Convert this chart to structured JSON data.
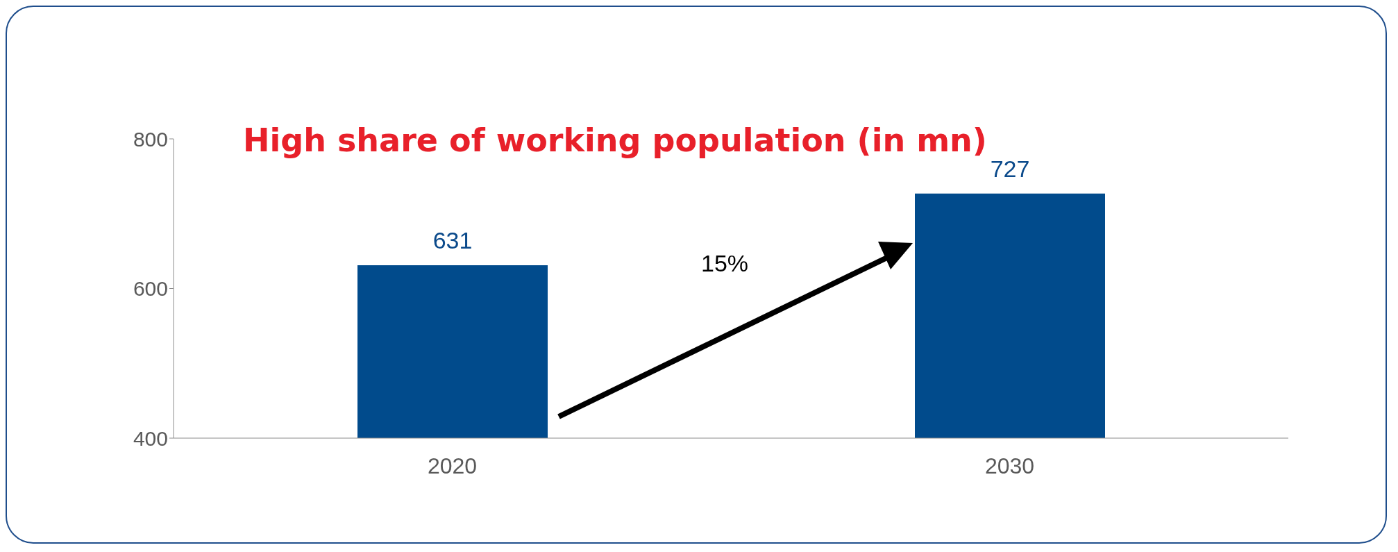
{
  "chart_data": {
    "type": "bar",
    "title": "High share of working population (in mn)",
    "categories": [
      "2020",
      "2030"
    ],
    "values": [
      631,
      727
    ],
    "color": "#014b8c",
    "ylim": [
      400,
      800
    ],
    "yticks": [
      400,
      600,
      800
    ],
    "data_labels": true,
    "annotations": [
      "15%"
    ]
  }
}
